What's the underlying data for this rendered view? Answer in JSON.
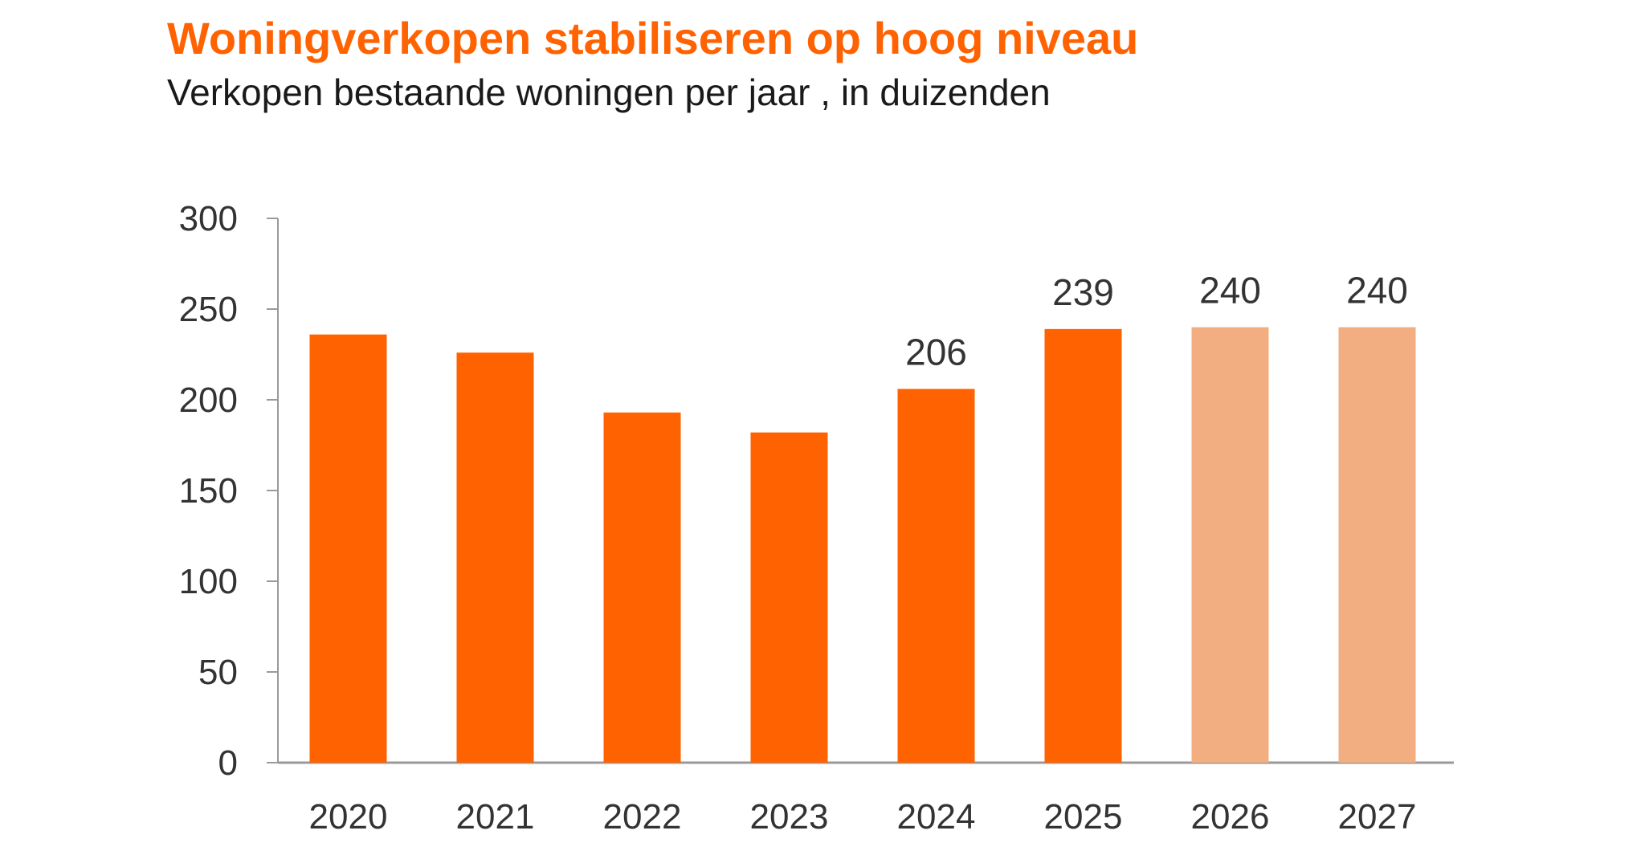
{
  "title": "Woningverkopen stabiliseren op hoog niveau",
  "subtitle": "Verkopen bestaande woningen per jaar , in duizenden",
  "colors": {
    "title": "#ff6200",
    "actual": "#ff6200",
    "forecast": "#f2ae80",
    "axis": "#9a9a9a",
    "text": "#333333"
  },
  "chart_data": {
    "type": "bar",
    "title": "Woningverkopen stabiliseren op hoog niveau",
    "subtitle": "Verkopen bestaande woningen per jaar , in duizenden",
    "xlabel": "",
    "ylabel": "",
    "categories": [
      "2020",
      "2021",
      "2022",
      "2023",
      "2024",
      "2025",
      "2026",
      "2027"
    ],
    "values": [
      236,
      226,
      193,
      182,
      206,
      239,
      240,
      240
    ],
    "forecast": [
      false,
      false,
      false,
      false,
      false,
      false,
      true,
      true
    ],
    "data_labels": [
      "",
      "",
      "",
      "",
      "206",
      "239",
      "240",
      "240"
    ],
    "ylim": [
      0,
      300
    ],
    "yticks": [
      0,
      50,
      100,
      150,
      200,
      250,
      300
    ],
    "grid": false,
    "legend": "none"
  }
}
